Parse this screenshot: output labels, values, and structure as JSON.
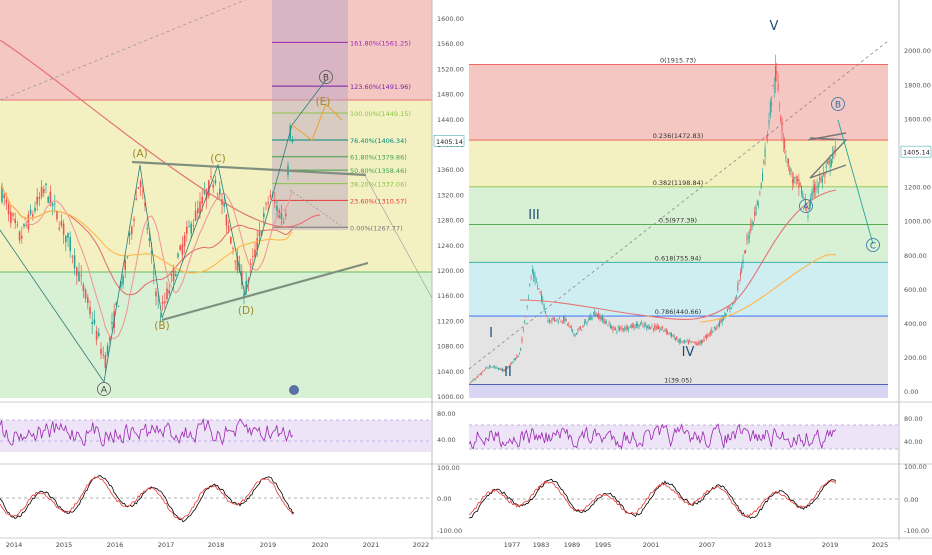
{
  "colors": {
    "up": "#26a69a",
    "down": "#ef5350",
    "rsi": "#9c27b0",
    "macd": "#000000",
    "signal": "#e53935",
    "wave": "#7a8a3a",
    "fib_pink": "#f4c7c3",
    "fib_yellow": "#f3f1c2",
    "fib_green": "#d8f0d3",
    "fib_cyan": "#cfeef2",
    "fib_gray": "#e4e4e4",
    "fib_purple": "#d9d6f4"
  },
  "left_chart": {
    "price_axis": [
      "1600.00",
      "1560.00",
      "1520.00",
      "1480.00",
      "1440.00",
      "1400.00",
      "1360.00",
      "1320.00",
      "1280.00",
      "1240.00",
      "1200.00",
      "1160.00",
      "1120.00",
      "1080.00",
      "1040.00",
      "1000.00"
    ],
    "price_min": 1000,
    "price_max": 1600,
    "current_price": "1405.14",
    "year_labels": [
      "2014",
      "2015",
      "2016",
      "2017",
      "2018",
      "2019",
      "2020",
      "2021",
      "2022"
    ],
    "fib_levels": [
      {
        "label": "161.80%(1561.25)",
        "price": 1561.25,
        "color": "#9c27b0"
      },
      {
        "label": "123.60%(1491.96)",
        "price": 1491.96,
        "color": "#7b1fa2"
      },
      {
        "label": "100.00%(1449.15)",
        "price": 1449.15,
        "color": "#8bc34a"
      },
      {
        "label": "76.40%(1406.34)",
        "price": 1406.34,
        "color": "#00897b"
      },
      {
        "label": "61.80%(1379.86)",
        "price": 1379.86,
        "color": "#43a047"
      },
      {
        "label": "50.00%(1358.46)",
        "price": 1358.46,
        "color": "#43a047"
      },
      {
        "label": "38.20%(1337.06)",
        "price": 1337.06,
        "color": "#8bc34a"
      },
      {
        "label": "23.60%(1310.57)",
        "price": 1310.57,
        "color": "#e53935"
      },
      {
        "label": "0.00%(1267.77)",
        "price": 1267.77,
        "color": "#757575"
      }
    ],
    "wave_labels": [
      "(A)",
      "(B)",
      "(C)",
      "(D)",
      "(E)"
    ],
    "circle_labels": [
      "A",
      "B"
    ]
  },
  "right_chart": {
    "price_axis": [
      "2000.00",
      "1800.00",
      "1600.00",
      "1400.00",
      "1200.00",
      "1000.00",
      "800.00",
      "600.00",
      "400.00",
      "200.00",
      "0.00"
    ],
    "price_min": -40,
    "price_max": 2060,
    "current_price": "1405.14",
    "year_labels": [
      "1977",
      "1983",
      "1989",
      "1995",
      "2001",
      "2007",
      "2013",
      "2019",
      "2025"
    ],
    "fib_levels": [
      {
        "label": "0(1915.73)",
        "price": 1915.73,
        "color": "#ef5350"
      },
      {
        "label": "0.236(1472.83)",
        "price": 1472.83,
        "color": "#ef5350"
      },
      {
        "label": "0.382(1198.84)",
        "price": 1198.84,
        "color": "#8bc34a"
      },
      {
        "label": "0.5(977.39)",
        "price": 977.39,
        "color": "#43a047"
      },
      {
        "label": "0.618(755.94)",
        "price": 755.94,
        "color": "#26a69a"
      },
      {
        "label": "0.786(440.66)",
        "price": 440.66,
        "color": "#2962ff"
      },
      {
        "label": "1(39.05)",
        "price": 39.05,
        "color": "#3f51b5"
      }
    ],
    "wave_labels": [
      "I",
      "II",
      "III",
      "IV",
      "V"
    ],
    "circle_labels": [
      "A",
      "B",
      "C"
    ]
  },
  "rsi_panel": {
    "axis": [
      "80.00",
      "40.00"
    ]
  },
  "macd_panel": {
    "axis": [
      "100.00",
      "0.00",
      "-100.00"
    ]
  },
  "chart_data": [
    {
      "type": "line",
      "title": "",
      "x": [
        "2014",
        "2015",
        "2016",
        "2017",
        "2018",
        "2019"
      ],
      "series": [
        {
          "values": [
            1330,
            1200,
            1060,
            1340,
            1300,
            1410
          ]
        }
      ],
      "ylim": [
        1000,
        1600
      ],
      "scale": "linear"
    },
    {
      "type": "line",
      "title": "",
      "x": [
        "1977",
        "1983",
        "1989",
        "1995",
        "2001",
        "2007",
        "2013",
        "2019"
      ],
      "series": [
        {
          "values": [
            140,
            650,
            420,
            380,
            270,
            650,
            1900,
            1405
          ]
        }
      ],
      "ylim": [
        0,
        2000
      ],
      "scale": "linear"
    }
  ]
}
